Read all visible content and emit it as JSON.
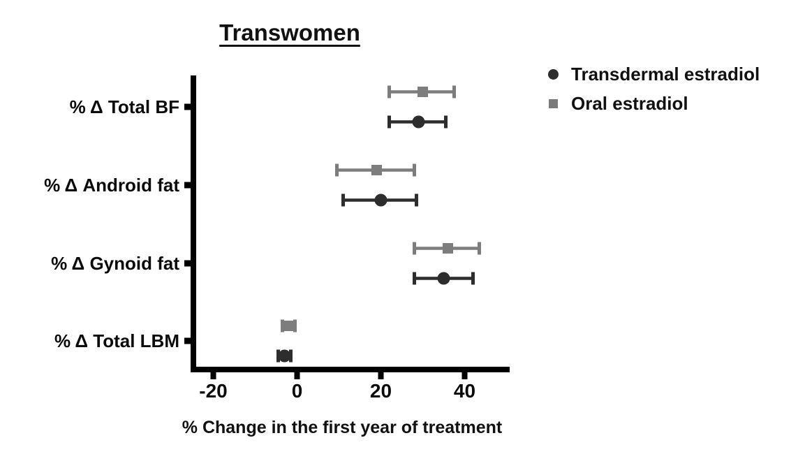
{
  "chart_data": {
    "type": "scatter",
    "subtype": "horizontal-forest-plot-with-error-bars",
    "title": "Transwomen",
    "xlabel": "% Change in the first year of treatment",
    "categories": [
      "% Δ Total BF",
      "% Δ Android fat",
      "% Δ Gynoid fat",
      "% Δ Total LBM"
    ],
    "xticks": [
      "-20",
      "0",
      "20",
      "40"
    ],
    "xlim": [
      -25,
      50
    ],
    "grid": false,
    "legend_position": "top-right",
    "axis_color": "#000000",
    "series": [
      {
        "name": "Transdermal estradiol",
        "marker": "circle",
        "color": "#2d2d2d",
        "values": [
          29,
          20,
          35,
          -3
        ],
        "ci_low": [
          22,
          11,
          28,
          -4.5
        ],
        "ci_high": [
          35.5,
          28.5,
          42,
          -1.5
        ]
      },
      {
        "name": "Oral estradiol",
        "marker": "square",
        "color": "#7d7d7d",
        "values": [
          30,
          19,
          36,
          -2
        ],
        "ci_low": [
          22,
          9.5,
          28,
          -3.5
        ],
        "ci_high": [
          37.5,
          28,
          43.5,
          -0.5
        ]
      }
    ]
  }
}
